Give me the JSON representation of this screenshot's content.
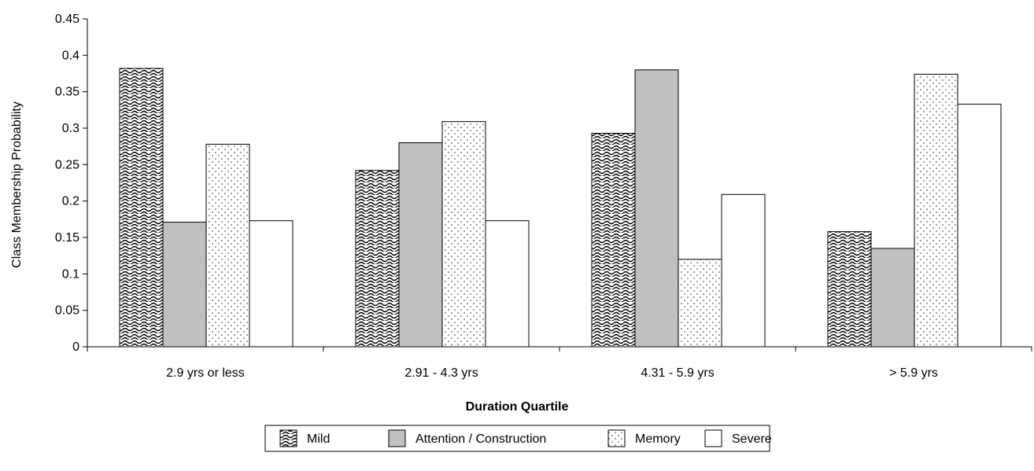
{
  "chart_data": {
    "type": "bar",
    "title": "",
    "xlabel": "Duration Quartile",
    "ylabel": "Class Membership Probability",
    "categories": [
      "2.9 yrs or less",
      "2.91 - 4.3 yrs",
      "4.31 - 5.9 yrs",
      "> 5.9 yrs"
    ],
    "ylim": [
      0,
      0.45
    ],
    "yticks": [
      0,
      0.05,
      0.1,
      0.15,
      0.2,
      0.25,
      0.3,
      0.35,
      0.4,
      0.45
    ],
    "ytick_labels": [
      "0",
      "0.05",
      "0.1",
      "0.15",
      "0.2",
      "0.25",
      "0.3",
      "0.35",
      "0.4",
      "0.45"
    ],
    "grid": false,
    "legend_position": "bottom",
    "series": [
      {
        "name": "Mild",
        "pattern": "wave",
        "values": [
          0.382,
          0.242,
          0.293,
          0.158
        ]
      },
      {
        "name": "Attention / Construction",
        "pattern": "solid",
        "color": "#c0c0c0",
        "values": [
          0.171,
          0.28,
          0.38,
          0.135
        ]
      },
      {
        "name": "Memory",
        "pattern": "dots",
        "values": [
          0.278,
          0.309,
          0.12,
          0.374
        ]
      },
      {
        "name": "Severe",
        "pattern": "none",
        "color": "#ffffff",
        "values": [
          0.173,
          0.173,
          0.209,
          0.333
        ]
      }
    ]
  }
}
